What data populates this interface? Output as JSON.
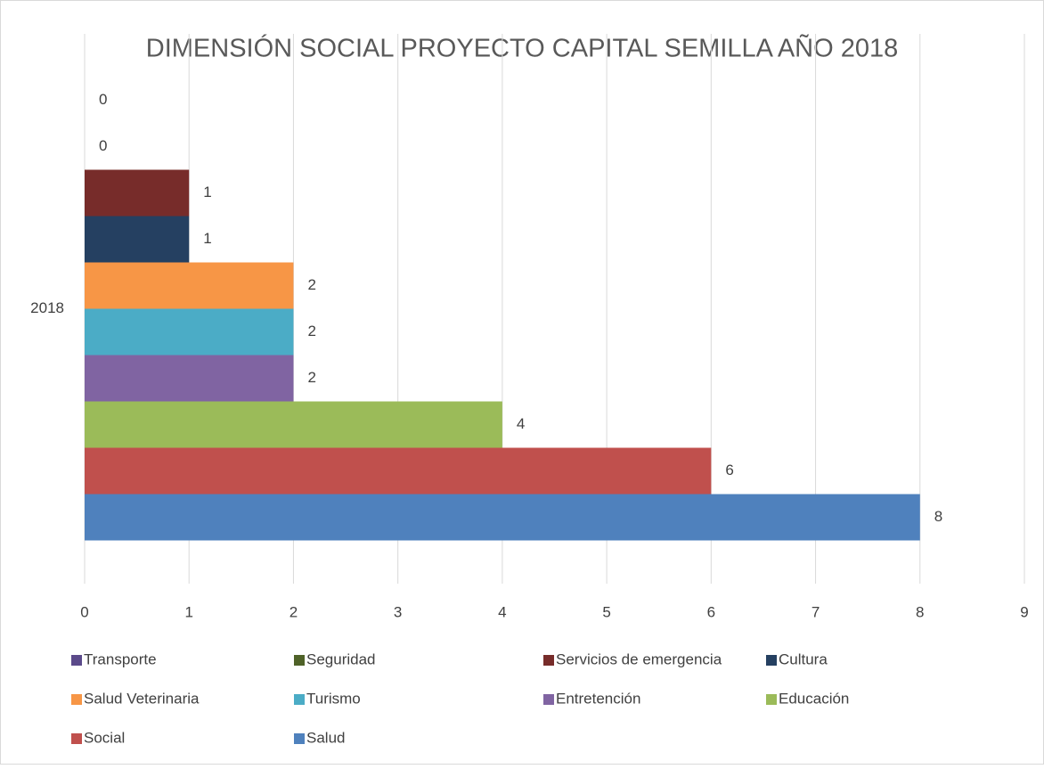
{
  "chart_data": {
    "type": "barh",
    "title": "DIMENSIÓN SOCIAL PROYECTO CAPITAL SEMILLA AÑO 2018",
    "categories": [
      "2018"
    ],
    "series": [
      {
        "name": "Transporte",
        "color": "#5b4a8a",
        "values": [
          0
        ]
      },
      {
        "name": "Seguridad",
        "color": "#4f6228",
        "values": [
          0
        ]
      },
      {
        "name": "Servicios de emergencia",
        "color": "#772c2a",
        "values": [
          1
        ]
      },
      {
        "name": "Cultura",
        "color": "#254061",
        "values": [
          1
        ]
      },
      {
        "name": "Salud Veterinaria",
        "color": "#f79646",
        "values": [
          2
        ]
      },
      {
        "name": "Turismo",
        "color": "#4bacc6",
        "values": [
          2
        ]
      },
      {
        "name": "Entretención",
        "color": "#8064a2",
        "values": [
          2
        ]
      },
      {
        "name": "Educación",
        "color": "#9bbb59",
        "values": [
          4
        ]
      },
      {
        "name": "Social",
        "color": "#c0504d",
        "values": [
          6
        ]
      },
      {
        "name": "Salud",
        "color": "#4f81bd",
        "values": [
          8
        ]
      }
    ],
    "xlim": [
      0,
      9
    ],
    "xticks": [
      0,
      1,
      2,
      3,
      4,
      5,
      6,
      7,
      8,
      9
    ],
    "grid": true,
    "legend": "bottom"
  }
}
